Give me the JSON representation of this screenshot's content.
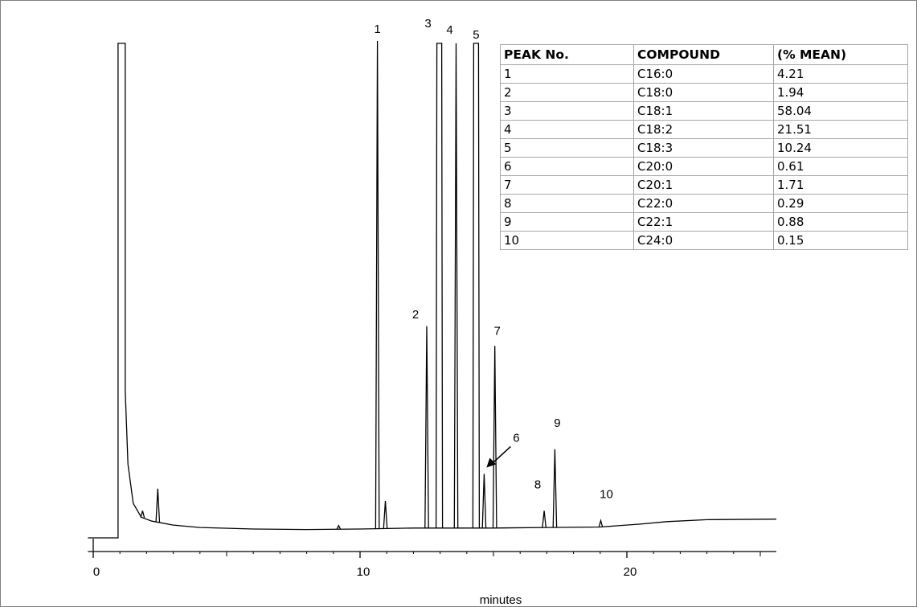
{
  "chart_data": {
    "type": "line",
    "xlabel": "minutes",
    "ylabel": "",
    "xlim": [
      -0.2,
      25.6
    ],
    "xticks": [
      0,
      10,
      20
    ],
    "tick_labels": [
      "0",
      "10",
      "20"
    ],
    "baseline_segments": [
      [
        [
          -0.2,
          0.0
        ],
        [
          0.93,
          0.0
        ],
        [
          0.93,
          1.005
        ],
        [
          1.2,
          1.005
        ],
        [
          1.2,
          0.3
        ],
        [
          1.3,
          0.15
        ],
        [
          1.5,
          0.07
        ],
        [
          1.8,
          0.042
        ],
        [
          2.2,
          0.034
        ],
        [
          3.0,
          0.026
        ],
        [
          4.0,
          0.021
        ],
        [
          6.0,
          0.018
        ],
        [
          8.0,
          0.017
        ],
        [
          10.0,
          0.018
        ],
        [
          12.0,
          0.02
        ],
        [
          15.0,
          0.02
        ],
        [
          17.0,
          0.021
        ],
        [
          19.0,
          0.022
        ],
        [
          20.5,
          0.028
        ],
        [
          21.5,
          0.033
        ],
        [
          23.0,
          0.037
        ],
        [
          25.6,
          0.038
        ]
      ]
    ],
    "peaks": [
      {
        "label": "1",
        "x": 10.65,
        "y": 1.01,
        "show_label": true
      },
      {
        "label": "",
        "x": 10.95,
        "y": 0.075,
        "show_label": false
      },
      {
        "label": "2",
        "x": 12.5,
        "y": 0.43,
        "show_label": true
      },
      {
        "label": "3",
        "x": 12.97,
        "y": 1.005,
        "flat_top": true,
        "show_label": true
      },
      {
        "label": "4",
        "x": 13.6,
        "y": 1.005,
        "show_label": true
      },
      {
        "label": "5",
        "x": 14.35,
        "y": 1.005,
        "flat_top": true,
        "show_label": true
      },
      {
        "label": "6",
        "x": 14.65,
        "y": 0.13,
        "show_label": true
      },
      {
        "label": "7",
        "x": 15.05,
        "y": 0.39,
        "show_label": true
      },
      {
        "label": "8",
        "x": 16.9,
        "y": 0.055,
        "show_label": true
      },
      {
        "label": "9",
        "x": 17.3,
        "y": 0.18,
        "show_label": true
      },
      {
        "label": "10",
        "x": 19.02,
        "y": 0.035,
        "show_label": true
      },
      {
        "label": "",
        "x": 2.42,
        "y": 0.1,
        "show_label": false
      },
      {
        "label": "",
        "x": 1.85,
        "y": 0.055,
        "show_label": false
      },
      {
        "label": "",
        "x": 9.2,
        "y": 0.025,
        "show_label": false
      }
    ]
  },
  "table": {
    "headers": [
      "PEAK No.",
      "COMPOUND",
      "(% MEAN)"
    ],
    "rows": [
      [
        "1",
        "C16:0",
        "4.21"
      ],
      [
        "2",
        "C18:0",
        "1.94"
      ],
      [
        "3",
        "C18:1",
        "58.04"
      ],
      [
        "4",
        "C18:2",
        "21.51"
      ],
      [
        "5",
        "C18:3",
        "10.24"
      ],
      [
        "6",
        "C20:0",
        "0.61"
      ],
      [
        "7",
        "C20:1",
        "1.71"
      ],
      [
        "8",
        "C22:0",
        "0.29"
      ],
      [
        "9",
        "C22:1",
        "0.88"
      ],
      [
        "10",
        "C24:0",
        "0.15"
      ]
    ]
  }
}
